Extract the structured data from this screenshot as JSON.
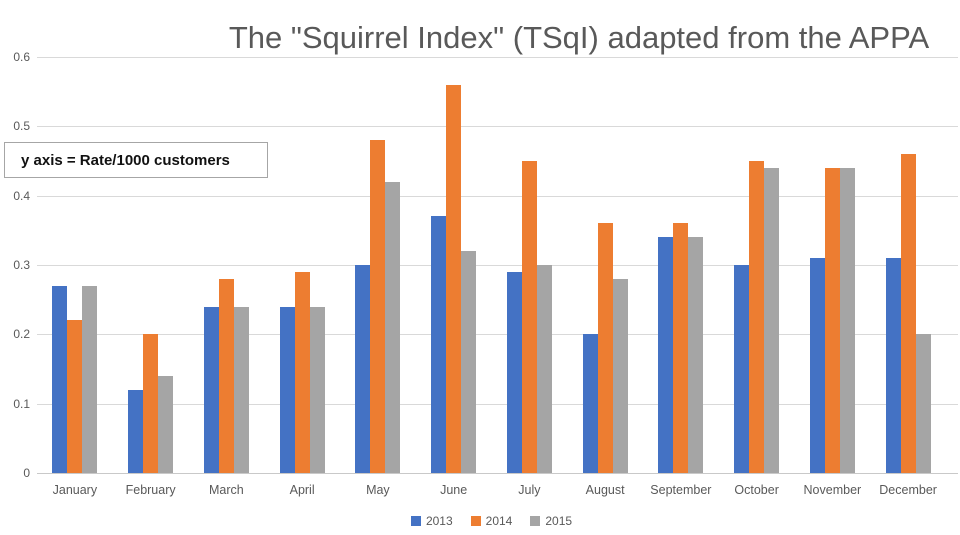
{
  "chart": {
    "title": "The \"Squirrel Index\" (TSqI) adapted from the APPA",
    "annotation": "y axis = Rate/1000 customers"
  },
  "chart_data": {
    "type": "bar",
    "title": "The \"Squirrel Index\" (TSqI) adapted from the APPA",
    "annotation": "y axis = Rate/1000 customers",
    "xlabel": "",
    "ylabel": "Rate/1000 customers",
    "categories": [
      "January",
      "February",
      "March",
      "April",
      "May",
      "June",
      "July",
      "August",
      "September",
      "October",
      "November",
      "December"
    ],
    "series": [
      {
        "name": "2013",
        "color": "#4472C4",
        "values": [
          0.27,
          0.12,
          0.24,
          0.24,
          0.3,
          0.37,
          0.29,
          0.2,
          0.34,
          0.3,
          0.31,
          0.31
        ]
      },
      {
        "name": "2014",
        "color": "#ED7D31",
        "values": [
          0.22,
          0.2,
          0.28,
          0.29,
          0.48,
          0.56,
          0.45,
          0.36,
          0.36,
          0.45,
          0.44,
          0.46
        ]
      },
      {
        "name": "2015",
        "color": "#A5A5A5",
        "values": [
          0.27,
          0.14,
          0.24,
          0.24,
          0.42,
          0.32,
          0.3,
          0.28,
          0.34,
          0.44,
          0.44,
          0.2
        ]
      }
    ],
    "ylim": [
      0,
      0.6
    ],
    "yticks": [
      0,
      0.1,
      0.2,
      0.3,
      0.4,
      0.5,
      0.6
    ],
    "grid": true,
    "legend_position": "bottom-center",
    "colors": {
      "gridline": "#d9d9d9",
      "title_text": "#595959",
      "axis_text": "#595959"
    }
  }
}
